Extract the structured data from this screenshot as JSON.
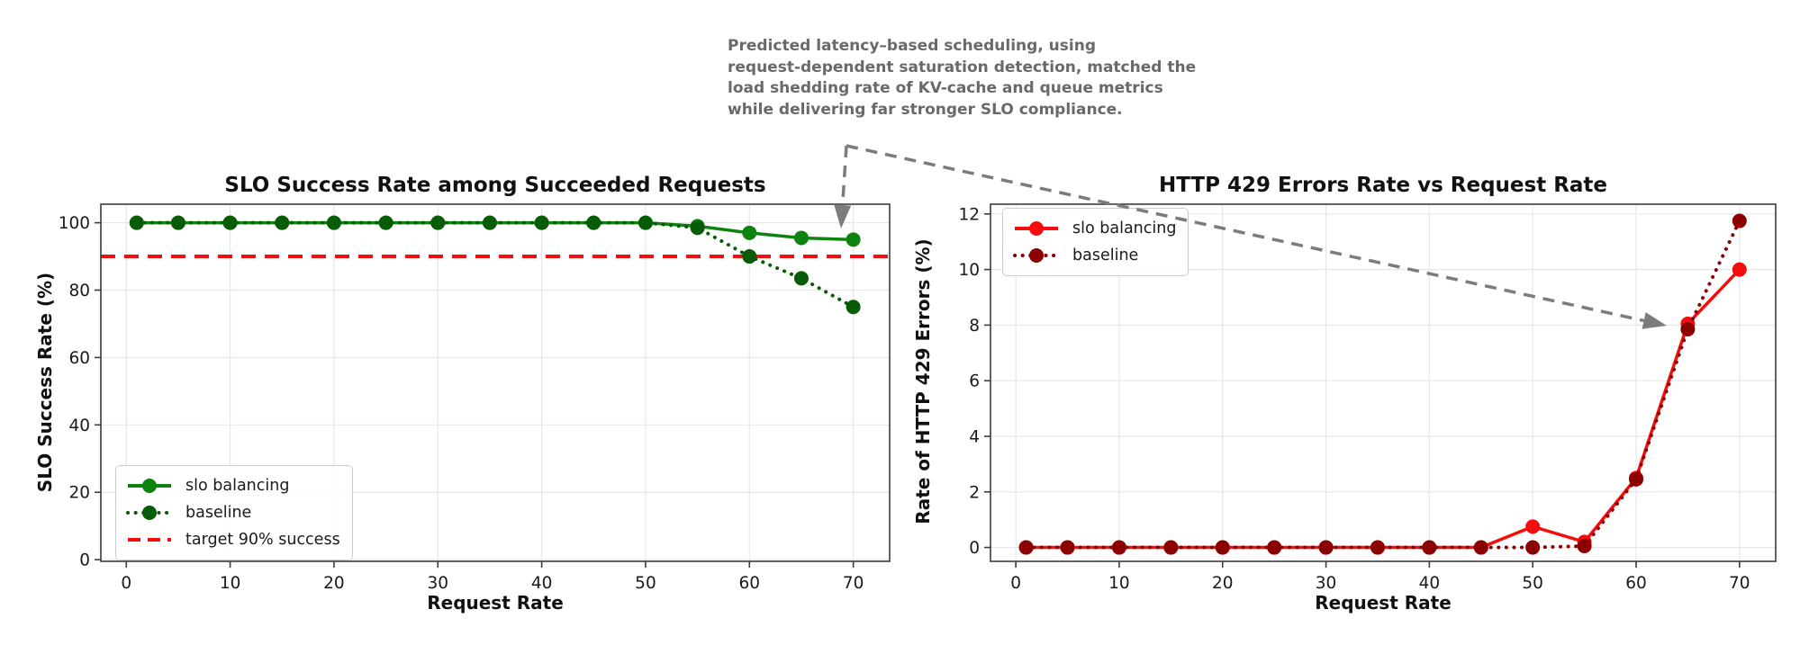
{
  "annotation": {
    "text": "Predicted latency–based scheduling, using\nrequest-dependent saturation detection, matched the\nload shedding rate of KV-cache and queue metrics\nwhile delivering far stronger SLO compliance.",
    "color": "#696969",
    "arrow_color": "#7c7c7c"
  },
  "chart_data": [
    {
      "type": "line",
      "title": "SLO Success Rate among Succeeded Requests",
      "xlabel": "Request Rate",
      "ylabel": "SLO Success Rate (%)",
      "x": [
        1,
        5,
        10,
        15,
        20,
        25,
        30,
        35,
        40,
        45,
        50,
        55,
        60,
        65,
        70
      ],
      "xticks": [
        0,
        10,
        20,
        30,
        40,
        50,
        60,
        70
      ],
      "yticks": [
        0,
        20,
        40,
        60,
        80,
        100
      ],
      "xlim": [
        -2.45,
        73.5
      ],
      "ylim": [
        -0.5,
        105.5
      ],
      "grid": true,
      "legend_position": "lower left",
      "series": [
        {
          "name": "slo balancing",
          "color": "#0f830f",
          "line": "solid",
          "marker": "circle",
          "values": [
            100,
            100,
            100,
            100,
            100,
            100,
            100,
            100,
            100,
            100,
            100,
            99,
            97,
            95.5,
            95
          ]
        },
        {
          "name": "baseline",
          "color": "#085c08",
          "line": "dotted",
          "marker": "circle",
          "values": [
            100,
            100,
            100,
            100,
            100,
            100,
            100,
            100,
            100,
            100,
            100,
            98.5,
            90,
            83.5,
            75
          ]
        }
      ],
      "target_line": {
        "name": "target 90% success",
        "color": "#f50d0d",
        "line": "dashed",
        "y": 90
      }
    },
    {
      "type": "line",
      "title": "HTTP 429 Errors Rate vs Request Rate",
      "xlabel": "Request Rate",
      "ylabel": "Rate of HTTP 429 Errors (%)",
      "x": [
        1,
        5,
        10,
        15,
        20,
        25,
        30,
        35,
        40,
        45,
        50,
        55,
        60,
        65,
        70
      ],
      "xticks": [
        0,
        10,
        20,
        30,
        40,
        50,
        60,
        70
      ],
      "yticks": [
        0,
        2,
        4,
        6,
        8,
        10,
        12
      ],
      "xlim": [
        -2.45,
        73.5
      ],
      "ylim": [
        -0.5,
        12.35
      ],
      "grid": true,
      "legend_position": "upper left",
      "series": [
        {
          "name": "slo balancing",
          "color": "#f50d0d",
          "line": "solid",
          "marker": "circle",
          "values": [
            0,
            0,
            0,
            0,
            0,
            0,
            0,
            0,
            0,
            0,
            0.75,
            0.2,
            2.5,
            8.05,
            10
          ]
        },
        {
          "name": "baseline",
          "color": "#8b0000",
          "line": "dotted",
          "marker": "circle",
          "values": [
            0,
            0,
            0,
            0,
            0,
            0,
            0,
            0,
            0,
            0,
            0,
            0.05,
            2.45,
            7.85,
            11.75
          ]
        }
      ]
    }
  ]
}
